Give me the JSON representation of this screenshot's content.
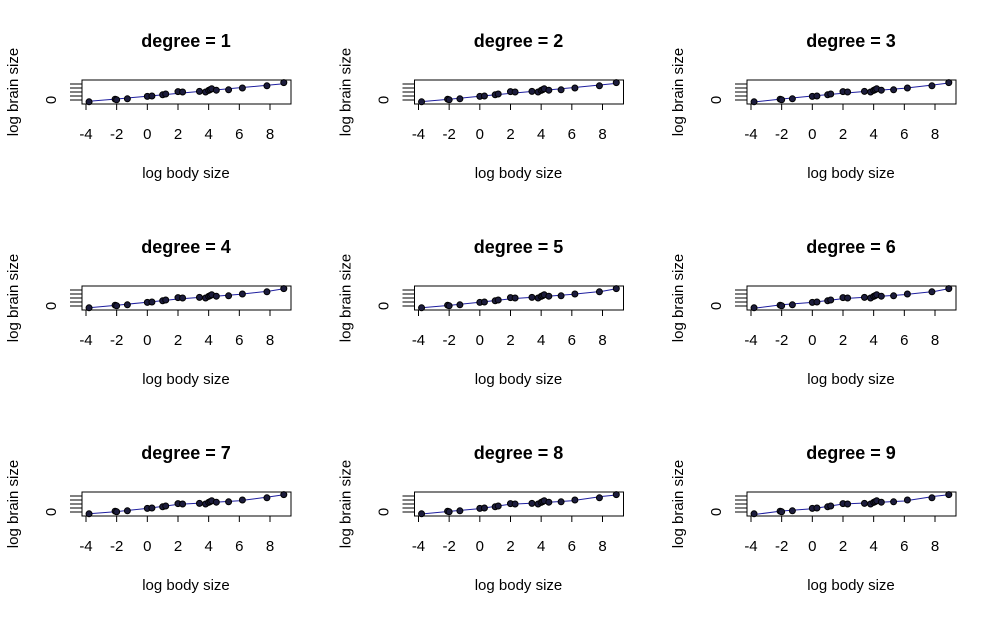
{
  "chart_data": [
    {
      "type": "scatter",
      "title": "degree = 1",
      "xlabel": "log body size",
      "ylabel": "log brain size",
      "x": [
        -3.8,
        -2.1,
        -2.0,
        -1.3,
        0,
        0.3,
        1,
        1.2,
        2.0,
        2.3,
        3.4,
        3.8,
        4.0,
        4.1,
        4.2,
        4.5,
        5.3,
        6.2,
        7.8,
        8.9
      ],
      "values": [
        -0.9,
        0.4,
        0.1,
        0.6,
        1.8,
        2.0,
        2.6,
        3.0,
        4.2,
        4.0,
        4.3,
        4.0,
        4.8,
        5.2,
        5.6,
        4.9,
        5.1,
        6.0,
        7.1,
        8.7
      ],
      "fit_x": [
        -3.8,
        -2,
        0,
        2,
        4,
        6,
        8,
        8.9
      ],
      "fit_values": [
        -0.6,
        0.5,
        1.9,
        3.3,
        4.7,
        6.1,
        7.5,
        8.1
      ],
      "color": "#1c1c3c",
      "fit_color": "#1f1f9f",
      "xlim": [
        -4.26,
        9.37
      ],
      "ylim": [
        -2,
        10
      ],
      "xticks": [
        -4,
        -2,
        0,
        2,
        4,
        6,
        8
      ],
      "yticks": [
        0,
        {
          "value": 2,
          "label": null
        },
        {
          "value": 4,
          "label": null
        },
        {
          "value": 6,
          "label": null
        },
        {
          "value": 8,
          "label": null
        }
      ]
    },
    {
      "type": "scatter",
      "title": "degree = 2",
      "xlabel": "log body size",
      "ylabel": "log brain size",
      "x": [
        -3.8,
        -2.1,
        -2.0,
        -1.3,
        0,
        0.3,
        1,
        1.2,
        2.0,
        2.3,
        3.4,
        3.8,
        4.0,
        4.1,
        4.2,
        4.5,
        5.3,
        6.2,
        7.8,
        8.9
      ],
      "values": [
        -0.9,
        0.4,
        0.1,
        0.6,
        1.8,
        2.0,
        2.6,
        3.0,
        4.2,
        4.0,
        4.3,
        4.0,
        4.8,
        5.2,
        5.6,
        4.9,
        5.1,
        6.0,
        7.1,
        8.7
      ],
      "fit_x": [
        -3.8,
        -2,
        0,
        2,
        4,
        6,
        8,
        8.9
      ],
      "fit_values": [
        -0.8,
        0.4,
        1.9,
        3.3,
        4.7,
        6.1,
        7.6,
        8.3
      ],
      "color": "#1c1c3c",
      "fit_color": "#1f1f9f",
      "xlim": [
        -4.26,
        9.37
      ],
      "ylim": [
        -2,
        10
      ],
      "xticks": [
        -4,
        -2,
        0,
        2,
        4,
        6,
        8
      ],
      "yticks": [
        0,
        {
          "value": 2,
          "label": null
        },
        {
          "value": 4,
          "label": null
        },
        {
          "value": 6,
          "label": null
        },
        {
          "value": 8,
          "label": null
        }
      ]
    },
    {
      "type": "scatter",
      "title": "degree = 3",
      "xlabel": "log body size",
      "ylabel": "log brain size",
      "x": [
        -3.8,
        -2.1,
        -2.0,
        -1.3,
        0,
        0.3,
        1,
        1.2,
        2.0,
        2.3,
        3.4,
        3.8,
        4.0,
        4.1,
        4.2,
        4.5,
        5.3,
        6.2,
        7.8,
        8.9
      ],
      "values": [
        -0.9,
        0.4,
        0.1,
        0.6,
        1.8,
        2.0,
        2.6,
        3.0,
        4.2,
        4.0,
        4.3,
        4.0,
        4.8,
        5.2,
        5.6,
        4.9,
        5.1,
        6.0,
        7.1,
        8.7
      ],
      "fit_x": [
        -3.8,
        -2,
        0,
        2,
        4,
        6,
        8,
        8.9
      ],
      "fit_values": [
        -1.0,
        0.5,
        2.0,
        3.4,
        4.6,
        5.9,
        7.6,
        8.5
      ],
      "color": "#1c1c3c",
      "fit_color": "#1f1f9f",
      "xlim": [
        -4.26,
        9.37
      ],
      "ylim": [
        -2,
        10
      ],
      "xticks": [
        -4,
        -2,
        0,
        2,
        4,
        6,
        8
      ],
      "yticks": [
        0,
        {
          "value": 2,
          "label": null
        },
        {
          "value": 4,
          "label": null
        },
        {
          "value": 6,
          "label": null
        },
        {
          "value": 8,
          "label": null
        }
      ]
    },
    {
      "type": "scatter",
      "title": "degree = 4",
      "xlabel": "log body size",
      "ylabel": "log brain size",
      "x": [
        -3.8,
        -2.1,
        -2.0,
        -1.3,
        0,
        0.3,
        1,
        1.2,
        2.0,
        2.3,
        3.4,
        3.8,
        4.0,
        4.1,
        4.2,
        4.5,
        5.3,
        6.2,
        7.8,
        8.9
      ],
      "values": [
        -0.9,
        0.4,
        0.1,
        0.6,
        1.8,
        2.0,
        2.6,
        3.0,
        4.2,
        4.0,
        4.3,
        4.0,
        4.8,
        5.2,
        5.6,
        4.9,
        5.1,
        6.0,
        7.1,
        8.7
      ],
      "fit_x": [
        -3.8,
        -2,
        0,
        2,
        4,
        6,
        8,
        8.9
      ],
      "fit_values": [
        -0.9,
        0.4,
        1.9,
        3.5,
        4.6,
        5.8,
        7.5,
        8.6
      ],
      "color": "#1c1c3c",
      "fit_color": "#1f1f9f",
      "xlim": [
        -4.26,
        9.37
      ],
      "ylim": [
        -2,
        10
      ],
      "xticks": [
        -4,
        -2,
        0,
        2,
        4,
        6,
        8
      ],
      "yticks": [
        0,
        {
          "value": 2,
          "label": null
        },
        {
          "value": 4,
          "label": null
        },
        {
          "value": 6,
          "label": null
        },
        {
          "value": 8,
          "label": null
        }
      ]
    },
    {
      "type": "scatter",
      "title": "degree = 5",
      "xlabel": "log body size",
      "ylabel": "log brain size",
      "x": [
        -3.8,
        -2.1,
        -2.0,
        -1.3,
        0,
        0.3,
        1,
        1.2,
        2.0,
        2.3,
        3.4,
        3.8,
        4.0,
        4.1,
        4.2,
        4.5,
        5.3,
        6.2,
        7.8,
        8.9
      ],
      "values": [
        -0.9,
        0.4,
        0.1,
        0.6,
        1.8,
        2.0,
        2.6,
        3.0,
        4.2,
        4.0,
        4.3,
        4.0,
        4.8,
        5.2,
        5.6,
        4.9,
        5.1,
        6.0,
        7.1,
        8.7
      ],
      "fit_x": [
        -3.8,
        -2,
        0,
        2,
        4,
        6,
        8,
        8.9
      ],
      "fit_values": [
        -0.9,
        0.3,
        1.9,
        3.6,
        4.6,
        5.8,
        7.4,
        8.6
      ],
      "color": "#1c1c3c",
      "fit_color": "#1f1f9f",
      "xlim": [
        -4.26,
        9.37
      ],
      "ylim": [
        -2,
        10
      ],
      "xticks": [
        -4,
        -2,
        0,
        2,
        4,
        6,
        8
      ],
      "yticks": [
        0,
        {
          "value": 2,
          "label": null
        },
        {
          "value": 4,
          "label": null
        },
        {
          "value": 6,
          "label": null
        },
        {
          "value": 8,
          "label": null
        }
      ]
    },
    {
      "type": "scatter",
      "title": "degree = 6",
      "xlabel": "log body size",
      "ylabel": "log brain size",
      "x": [
        -3.8,
        -2.1,
        -2.0,
        -1.3,
        0,
        0.3,
        1,
        1.2,
        2.0,
        2.3,
        3.4,
        3.8,
        4.0,
        4.1,
        4.2,
        4.5,
        5.3,
        6.2,
        7.8,
        8.9
      ],
      "values": [
        -0.9,
        0.4,
        0.1,
        0.6,
        1.8,
        2.0,
        2.6,
        3.0,
        4.2,
        4.0,
        4.3,
        4.0,
        4.8,
        5.2,
        5.6,
        4.9,
        5.1,
        6.0,
        7.1,
        8.7
      ],
      "fit_x": [
        -3.8,
        -2,
        0,
        2,
        4,
        6,
        8,
        8.9
      ],
      "fit_values": [
        -1.1,
        0.6,
        1.8,
        3.7,
        4.6,
        5.7,
        7.3,
        8.7
      ],
      "color": "#1c1c3c",
      "fit_color": "#1f1f9f",
      "xlim": [
        -4.26,
        9.37
      ],
      "ylim": [
        -2,
        10
      ],
      "xticks": [
        -4,
        -2,
        0,
        2,
        4,
        6,
        8
      ],
      "yticks": [
        0,
        {
          "value": 2,
          "label": null
        },
        {
          "value": 4,
          "label": null
        },
        {
          "value": 6,
          "label": null
        },
        {
          "value": 8,
          "label": null
        }
      ]
    },
    {
      "type": "scatter",
      "title": "degree = 7",
      "xlabel": "log body size",
      "ylabel": "log brain size",
      "x": [
        -3.8,
        -2.1,
        -2.0,
        -1.3,
        0,
        0.3,
        1,
        1.2,
        2.0,
        2.3,
        3.4,
        3.8,
        4.0,
        4.1,
        4.2,
        4.5,
        5.3,
        6.2,
        7.8,
        8.9
      ],
      "values": [
        -0.9,
        0.4,
        0.1,
        0.6,
        1.8,
        2.0,
        2.6,
        3.0,
        4.2,
        4.0,
        4.3,
        4.0,
        4.8,
        5.2,
        5.6,
        4.9,
        5.1,
        6.0,
        7.1,
        8.7
      ],
      "fit_x": [
        -3.8,
        -2,
        0,
        2,
        4,
        6,
        8,
        8.9
      ],
      "fit_values": [
        -0.9,
        0.2,
        1.8,
        3.8,
        4.7,
        5.6,
        7.6,
        8.6
      ],
      "color": "#1c1c3c",
      "fit_color": "#1f1f9f",
      "xlim": [
        -4.26,
        9.37
      ],
      "ylim": [
        -2,
        10
      ],
      "xticks": [
        -4,
        -2,
        0,
        2,
        4,
        6,
        8
      ],
      "yticks": [
        0,
        {
          "value": 2,
          "label": null
        },
        {
          "value": 4,
          "label": null
        },
        {
          "value": 6,
          "label": null
        },
        {
          "value": 8,
          "label": null
        }
      ]
    },
    {
      "type": "scatter",
      "title": "degree = 8",
      "xlabel": "log body size",
      "ylabel": "log brain size",
      "x": [
        -3.8,
        -2.1,
        -2.0,
        -1.3,
        0,
        0.3,
        1,
        1.2,
        2.0,
        2.3,
        3.4,
        3.8,
        4.0,
        4.1,
        4.2,
        4.5,
        5.3,
        6.2,
        7.8,
        8.9
      ],
      "values": [
        -0.9,
        0.4,
        0.1,
        0.6,
        1.8,
        2.0,
        2.6,
        3.0,
        4.2,
        4.0,
        4.3,
        4.0,
        4.8,
        5.2,
        5.6,
        4.9,
        5.1,
        6.0,
        7.1,
        8.7
      ],
      "fit_x": [
        -3.8,
        -2,
        0,
        2,
        4,
        6,
        8,
        8.9
      ],
      "fit_values": [
        -1.0,
        0.3,
        1.7,
        3.9,
        4.6,
        5.6,
        7.8,
        8.5
      ],
      "color": "#1c1c3c",
      "fit_color": "#1f1f9f",
      "xlim": [
        -4.26,
        9.37
      ],
      "ylim": [
        -2,
        10
      ],
      "xticks": [
        -4,
        -2,
        0,
        2,
        4,
        6,
        8
      ],
      "yticks": [
        0,
        {
          "value": 2,
          "label": null
        },
        {
          "value": 4,
          "label": null
        },
        {
          "value": 6,
          "label": null
        },
        {
          "value": 8,
          "label": null
        }
      ]
    },
    {
      "type": "scatter",
      "title": "degree = 9",
      "xlabel": "log body size",
      "ylabel": "log brain size",
      "x": [
        -3.8,
        -2.1,
        -2.0,
        -1.3,
        0,
        0.3,
        1,
        1.2,
        2.0,
        2.3,
        3.4,
        3.8,
        4.0,
        4.1,
        4.2,
        4.5,
        5.3,
        6.2,
        7.8,
        8.9
      ],
      "values": [
        -0.9,
        0.4,
        0.1,
        0.6,
        1.8,
        2.0,
        2.6,
        3.0,
        4.2,
        4.0,
        4.3,
        4.0,
        4.8,
        5.2,
        5.6,
        4.9,
        5.1,
        6.0,
        7.1,
        8.7
      ],
      "fit_x": [
        -3.8,
        -2,
        0,
        2,
        4,
        6,
        8,
        8.9
      ],
      "fit_values": [
        -1.3,
        0.5,
        1.6,
        4.0,
        4.7,
        5.5,
        7.9,
        8.6
      ],
      "color": "#1c1c3c",
      "fit_color": "#1f1f9f",
      "xlim": [
        -4.26,
        9.37
      ],
      "ylim": [
        -2,
        10
      ],
      "xticks": [
        -4,
        -2,
        0,
        2,
        4,
        6,
        8
      ],
      "yticks": [
        0,
        {
          "value": 2,
          "label": null
        },
        {
          "value": 4,
          "label": null
        },
        {
          "value": 6,
          "label": null
        },
        {
          "value": 8,
          "label": null
        }
      ]
    }
  ]
}
